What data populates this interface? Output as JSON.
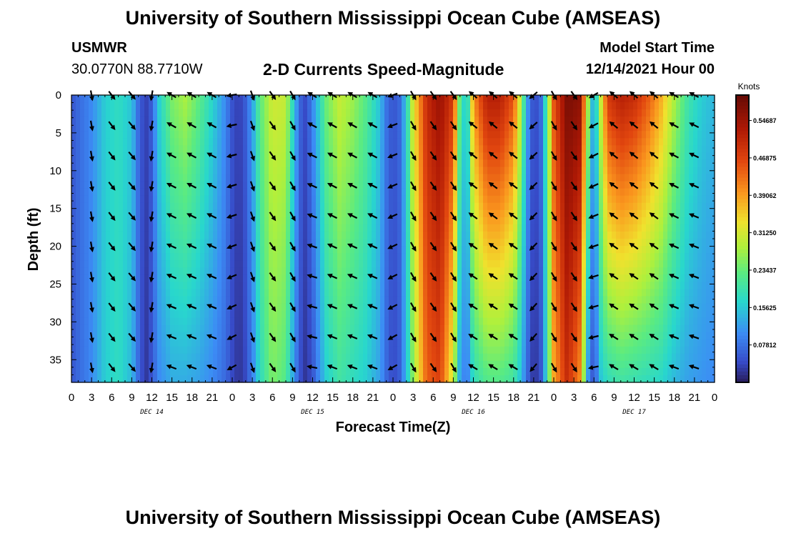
{
  "header": {
    "title": "University of Southern Mississippi Ocean Cube (AMSEAS)",
    "station": "USMWR",
    "coords": "30.0770N  88.7710W",
    "subtitle": "2-D Currents Speed-Magnitude",
    "start_label": "Model Start Time",
    "start_value": "12/14/2021 Hour 00"
  },
  "footer": {
    "title": "University of Southern Mississippi Ocean Cube (AMSEAS)"
  },
  "chart_data": {
    "type": "heatmap",
    "title": "2-D Currents Speed-Magnitude",
    "xlabel": "Forecast Time(Z)",
    "ylabel": "Depth (ft)",
    "xlim": [
      0,
      96
    ],
    "ylim": [
      0,
      38
    ],
    "x_ticks": [
      0,
      3,
      6,
      9,
      12,
      15,
      18,
      21,
      24,
      27,
      30,
      33,
      36,
      39,
      42,
      45,
      48,
      51,
      54,
      57,
      60,
      63,
      66,
      69,
      72,
      75,
      78,
      81,
      84,
      87,
      90,
      93,
      96
    ],
    "x_tick_labels": [
      "0",
      "3",
      "6",
      "9",
      "12",
      "15",
      "18",
      "21",
      "0",
      "3",
      "6",
      "9",
      "12",
      "15",
      "18",
      "21",
      "0",
      "3",
      "6",
      "9",
      "12",
      "15",
      "18",
      "21",
      "0",
      "3",
      "6",
      "9",
      "12",
      "15",
      "18",
      "21",
      "0"
    ],
    "y_ticks": [
      0,
      5,
      10,
      15,
      20,
      25,
      30,
      35
    ],
    "y_tick_labels": [
      "0",
      "5",
      "10",
      "15",
      "20",
      "25",
      "30",
      "35"
    ],
    "day_labels": [
      {
        "text": "DEC 14",
        "hour": 12
      },
      {
        "text": "DEC 15",
        "hour": 36
      },
      {
        "text": "DEC 16",
        "hour": 60
      },
      {
        "text": "DEC 17",
        "hour": 84
      }
    ],
    "colorbar": {
      "label": "Knots",
      "range": [
        0.0,
        0.6
      ],
      "ticks": [
        0.07812,
        0.15625,
        0.23437,
        0.3125,
        0.39062,
        0.46875,
        0.54687
      ],
      "tick_labels": [
        "0.07812",
        "0.15625",
        "0.23437",
        "0.31250",
        "0.39062",
        "0.46875",
        "0.54687"
      ]
    },
    "arrow_depths": [
      0,
      4,
      8,
      12,
      16,
      20,
      24,
      28,
      32,
      36
    ],
    "time_columns": [
      {
        "hour": 0,
        "surface": 0.05,
        "bottom": 0.05,
        "dir_surface": 180,
        "dir_bottom": 180
      },
      {
        "hour": 1,
        "surface": 0.07,
        "bottom": 0.07,
        "dir_surface": 175,
        "dir_bottom": 175
      },
      {
        "hour": 3,
        "surface": 0.1,
        "bottom": 0.1,
        "dir_surface": 170,
        "dir_bottom": 170
      },
      {
        "hour": 5,
        "surface": 0.16,
        "bottom": 0.16,
        "dir_surface": 145,
        "dir_bottom": 145
      },
      {
        "hour": 7,
        "surface": 0.18,
        "bottom": 0.18,
        "dir_surface": 140,
        "dir_bottom": 140
      },
      {
        "hour": 9,
        "surface": 0.15,
        "bottom": 0.14,
        "dir_surface": 140,
        "dir_bottom": 140
      },
      {
        "hour": 10,
        "surface": 0.07,
        "bottom": 0.07,
        "dir_surface": 150,
        "dir_bottom": 150
      },
      {
        "hour": 11,
        "surface": 0.03,
        "bottom": 0.02,
        "dir_surface": 175,
        "dir_bottom": 175
      },
      {
        "hour": 12,
        "surface": 0.06,
        "bottom": 0.05,
        "dir_surface": 190,
        "dir_bottom": 190
      },
      {
        "hour": 13,
        "surface": 0.16,
        "bottom": 0.1,
        "dir_surface": 300,
        "dir_bottom": 280
      },
      {
        "hour": 15,
        "surface": 0.25,
        "bottom": 0.13,
        "dir_surface": 300,
        "dir_bottom": 290
      },
      {
        "hour": 17,
        "surface": 0.28,
        "bottom": 0.13,
        "dir_surface": 300,
        "dir_bottom": 290
      },
      {
        "hour": 19,
        "surface": 0.23,
        "bottom": 0.12,
        "dir_surface": 300,
        "dir_bottom": 290
      },
      {
        "hour": 21,
        "surface": 0.17,
        "bottom": 0.1,
        "dir_surface": 300,
        "dir_bottom": 290
      },
      {
        "hour": 23,
        "surface": 0.1,
        "bottom": 0.07,
        "dir_surface": 290,
        "dir_bottom": 280
      },
      {
        "hour": 24,
        "surface": 0.05,
        "bottom": 0.04,
        "dir_surface": 260,
        "dir_bottom": 240
      },
      {
        "hour": 25,
        "surface": 0.03,
        "bottom": 0.02,
        "dir_surface": 220,
        "dir_bottom": 210
      },
      {
        "hour": 26,
        "surface": 0.06,
        "bottom": 0.04,
        "dir_surface": 190,
        "dir_bottom": 190
      },
      {
        "hour": 27,
        "surface": 0.12,
        "bottom": 0.09,
        "dir_surface": 160,
        "dir_bottom": 160
      },
      {
        "hour": 28,
        "surface": 0.22,
        "bottom": 0.17,
        "dir_surface": 150,
        "dir_bottom": 150
      },
      {
        "hour": 30,
        "surface": 0.31,
        "bottom": 0.25,
        "dir_surface": 145,
        "dir_bottom": 145
      },
      {
        "hour": 32,
        "surface": 0.3,
        "bottom": 0.22,
        "dir_surface": 145,
        "dir_bottom": 145
      },
      {
        "hour": 33,
        "surface": 0.18,
        "bottom": 0.13,
        "dir_surface": 150,
        "dir_bottom": 150
      },
      {
        "hour": 34,
        "surface": 0.07,
        "bottom": 0.05,
        "dir_surface": 170,
        "dir_bottom": 170
      },
      {
        "hour": 35,
        "surface": 0.04,
        "bottom": 0.02,
        "dir_surface": 200,
        "dir_bottom": 210
      },
      {
        "hour": 36,
        "surface": 0.1,
        "bottom": 0.05,
        "dir_surface": 300,
        "dir_bottom": 280
      },
      {
        "hour": 38,
        "surface": 0.24,
        "bottom": 0.16,
        "dir_surface": 300,
        "dir_bottom": 290
      },
      {
        "hour": 40,
        "surface": 0.3,
        "bottom": 0.2,
        "dir_surface": 300,
        "dir_bottom": 290
      },
      {
        "hour": 42,
        "surface": 0.27,
        "bottom": 0.18,
        "dir_surface": 300,
        "dir_bottom": 290
      },
      {
        "hour": 44,
        "surface": 0.22,
        "bottom": 0.16,
        "dir_surface": 300,
        "dir_bottom": 290
      },
      {
        "hour": 46,
        "surface": 0.15,
        "bottom": 0.12,
        "dir_surface": 300,
        "dir_bottom": 290
      },
      {
        "hour": 47,
        "surface": 0.08,
        "bottom": 0.07,
        "dir_surface": 290,
        "dir_bottom": 280
      },
      {
        "hour": 48,
        "surface": 0.05,
        "bottom": 0.04,
        "dir_surface": 250,
        "dir_bottom": 240
      },
      {
        "hour": 49,
        "surface": 0.07,
        "bottom": 0.06,
        "dir_surface": 200,
        "dir_bottom": 200
      },
      {
        "hour": 50,
        "surface": 0.16,
        "bottom": 0.14,
        "dir_surface": 165,
        "dir_bottom": 160
      },
      {
        "hour": 51,
        "surface": 0.32,
        "bottom": 0.26,
        "dir_surface": 150,
        "dir_bottom": 150
      },
      {
        "hour": 53,
        "surface": 0.5,
        "bottom": 0.44,
        "dir_surface": 145,
        "dir_bottom": 145
      },
      {
        "hour": 55,
        "surface": 0.55,
        "bottom": 0.47,
        "dir_surface": 145,
        "dir_bottom": 145
      },
      {
        "hour": 57,
        "surface": 0.48,
        "bottom": 0.3,
        "dir_surface": 145,
        "dir_bottom": 150
      },
      {
        "hour": 58,
        "surface": 0.22,
        "bottom": 0.12,
        "dir_surface": 200,
        "dir_bottom": 190
      },
      {
        "hour": 59,
        "surface": 0.14,
        "bottom": 0.08,
        "dir_surface": 300,
        "dir_bottom": 290
      },
      {
        "hour": 60,
        "surface": 0.4,
        "bottom": 0.18,
        "dir_surface": 310,
        "dir_bottom": 300
      },
      {
        "hour": 62,
        "surface": 0.52,
        "bottom": 0.22,
        "dir_surface": 310,
        "dir_bottom": 300
      },
      {
        "hour": 64,
        "surface": 0.52,
        "bottom": 0.22,
        "dir_surface": 310,
        "dir_bottom": 300
      },
      {
        "hour": 66,
        "surface": 0.45,
        "bottom": 0.2,
        "dir_surface": 310,
        "dir_bottom": 300
      },
      {
        "hour": 67,
        "surface": 0.3,
        "bottom": 0.15,
        "dir_surface": 300,
        "dir_bottom": 290
      },
      {
        "hour": 68,
        "surface": 0.12,
        "bottom": 0.07,
        "dir_surface": 280,
        "dir_bottom": 270
      },
      {
        "hour": 69,
        "surface": 0.04,
        "bottom": 0.02,
        "dir_surface": 230,
        "dir_bottom": 220
      },
      {
        "hour": 70,
        "surface": 0.06,
        "bottom": 0.04,
        "dir_surface": 190,
        "dir_bottom": 190
      },
      {
        "hour": 71,
        "surface": 0.22,
        "bottom": 0.18,
        "dir_surface": 160,
        "dir_bottom": 160
      },
      {
        "hour": 72,
        "surface": 0.45,
        "bottom": 0.38,
        "dir_surface": 150,
        "dir_bottom": 150
      },
      {
        "hour": 74,
        "surface": 0.58,
        "bottom": 0.5,
        "dir_surface": 145,
        "dir_bottom": 145
      },
      {
        "hour": 76,
        "surface": 0.56,
        "bottom": 0.4,
        "dir_surface": 145,
        "dir_bottom": 150
      },
      {
        "hour": 77,
        "surface": 0.3,
        "bottom": 0.12,
        "dir_surface": 160,
        "dir_bottom": 180
      },
      {
        "hour": 78,
        "surface": 0.1,
        "bottom": 0.04,
        "dir_surface": 240,
        "dir_bottom": 260
      },
      {
        "hour": 79,
        "surface": 0.3,
        "bottom": 0.15,
        "dir_surface": 300,
        "dir_bottom": 300
      },
      {
        "hour": 80,
        "surface": 0.48,
        "bottom": 0.18,
        "dir_surface": 310,
        "dir_bottom": 300
      },
      {
        "hour": 82,
        "surface": 0.52,
        "bottom": 0.2,
        "dir_surface": 310,
        "dir_bottom": 300
      },
      {
        "hour": 84,
        "surface": 0.5,
        "bottom": 0.19,
        "dir_surface": 310,
        "dir_bottom": 300
      },
      {
        "hour": 86,
        "surface": 0.45,
        "bottom": 0.18,
        "dir_surface": 310,
        "dir_bottom": 300
      },
      {
        "hour": 88,
        "surface": 0.38,
        "bottom": 0.17,
        "dir_surface": 310,
        "dir_bottom": 300
      },
      {
        "hour": 90,
        "surface": 0.28,
        "bottom": 0.14,
        "dir_surface": 300,
        "dir_bottom": 290
      },
      {
        "hour": 92,
        "surface": 0.2,
        "bottom": 0.12,
        "dir_surface": 300,
        "dir_bottom": 290
      },
      {
        "hour": 94,
        "surface": 0.16,
        "bottom": 0.11,
        "dir_surface": 295,
        "dir_bottom": 285
      },
      {
        "hour": 96,
        "surface": 0.14,
        "bottom": 0.1,
        "dir_surface": 290,
        "dir_bottom": 280
      }
    ]
  }
}
